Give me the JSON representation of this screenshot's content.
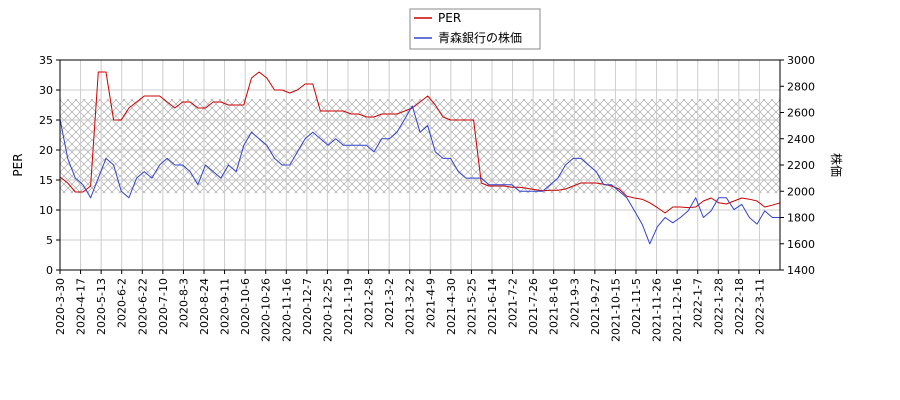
{
  "chart_data": {
    "type": "line",
    "legend": {
      "placement": "top-center"
    },
    "grid": true,
    "band": {
      "y_left": [
        12.8,
        28.5
      ],
      "pattern": "crosshatch"
    },
    "x_tick_labels": [
      "2020-3-30",
      "2020-4-17",
      "2020-5-13",
      "2020-6-2",
      "2020-6-22",
      "2020-7-10",
      "2020-8-3",
      "2020-8-24",
      "2020-9-11",
      "2020-10-6",
      "2020-10-26",
      "2020-11-16",
      "2020-12-7",
      "2020-12-25",
      "2021-1-19",
      "2021-2-8",
      "2021-3-2",
      "2021-3-22",
      "2021-4-9",
      "2021-4-30",
      "2021-5-25",
      "2021-6-14",
      "2021-7-2",
      "2021-7-26",
      "2021-8-16",
      "2021-9-3",
      "2021-9-27",
      "2021-10-15",
      "2021-11-5",
      "2021-11-26",
      "2021-12-16",
      "2022-1-7",
      "2022-1-28",
      "2022-2-18",
      "2022-3-11"
    ],
    "y_left": {
      "label": "PER",
      "min": 0,
      "max": 35,
      "ticks": [
        0,
        5,
        10,
        15,
        20,
        25,
        30,
        35
      ]
    },
    "y_right": {
      "label": "株価",
      "min": 1400,
      "max": 3000,
      "ticks": [
        1400,
        1600,
        1800,
        2000,
        2200,
        2400,
        2600,
        2800,
        3000
      ]
    },
    "series": [
      {
        "name": "PER",
        "axis": "left",
        "color": "#cc0000",
        "values": [
          15.5,
          14.5,
          13,
          13,
          14,
          33,
          33,
          25,
          25,
          27,
          28,
          29,
          29,
          29,
          28,
          27,
          28,
          28,
          27,
          27,
          28,
          28,
          27.5,
          27.5,
          27.5,
          32,
          33,
          32,
          30,
          30,
          29.5,
          30,
          31,
          31,
          26.5,
          26.5,
          26.5,
          26.5,
          26,
          26,
          25.5,
          25.5,
          26,
          26,
          26,
          26.5,
          27,
          28,
          29,
          27.5,
          25.5,
          25,
          25,
          25,
          25,
          14.5,
          14,
          14,
          14,
          13.8,
          13.8,
          13.6,
          13.4,
          13.2,
          13.3,
          13.3,
          13.5,
          14,
          14.5,
          14.5,
          14.5,
          14.3,
          14,
          13.5,
          12.3,
          12,
          11.8,
          11.2,
          10.4,
          9.5,
          10.5,
          10.5,
          10.4,
          10.5,
          11.5,
          12,
          11.2,
          11,
          11.5,
          12,
          11.8,
          11.5,
          10.5,
          10.8,
          11.2
        ]
      },
      {
        "name": "青森銀行の株価",
        "axis": "right",
        "color": "#3344cc",
        "values": [
          2550,
          2250,
          2100,
          2050,
          1950,
          2100,
          2250,
          2200,
          2000,
          1950,
          2100,
          2150,
          2100,
          2200,
          2250,
          2200,
          2200,
          2150,
          2050,
          2200,
          2150,
          2100,
          2200,
          2150,
          2350,
          2450,
          2400,
          2350,
          2250,
          2200,
          2200,
          2300,
          2400,
          2450,
          2400,
          2350,
          2400,
          2350,
          2350,
          2350,
          2350,
          2300,
          2400,
          2400,
          2450,
          2550,
          2650,
          2450,
          2500,
          2300,
          2250,
          2250,
          2150,
          2100,
          2100,
          2100,
          2050,
          2050,
          2050,
          2050,
          2000,
          2000,
          2000,
          2000,
          2050,
          2100,
          2200,
          2250,
          2250,
          2200,
          2150,
          2050,
          2050,
          2000,
          1950,
          1850,
          1750,
          1600,
          1730,
          1800,
          1760,
          1800,
          1850,
          1950,
          1800,
          1850,
          1950,
          1950,
          1860,
          1900,
          1800,
          1750,
          1850,
          1800,
          1800
        ]
      }
    ]
  }
}
